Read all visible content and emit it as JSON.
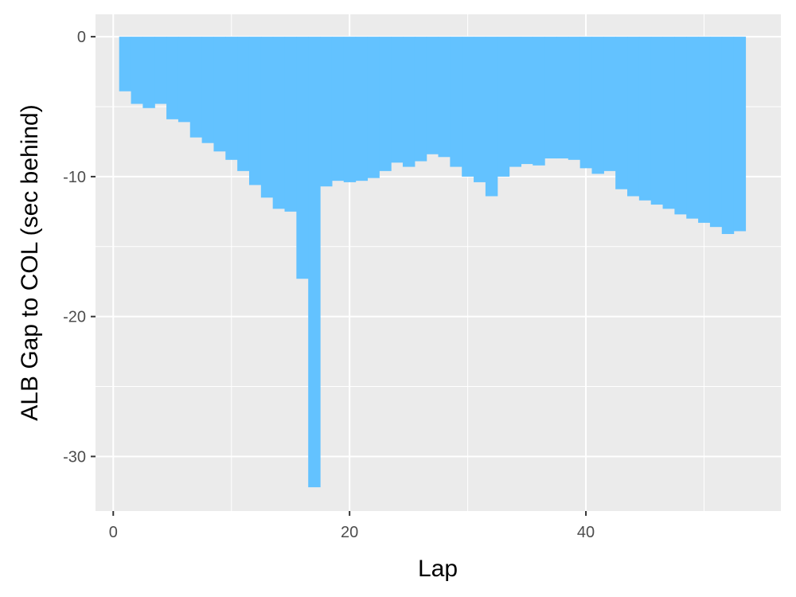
{
  "chart_data": {
    "type": "bar",
    "xlabel": "Lap",
    "ylabel": "ALB Gap to COL (sec behind)",
    "x": [
      1,
      2,
      3,
      4,
      5,
      6,
      7,
      8,
      9,
      10,
      11,
      12,
      13,
      14,
      15,
      16,
      17,
      18,
      19,
      20,
      21,
      22,
      23,
      24,
      25,
      26,
      27,
      28,
      29,
      30,
      31,
      32,
      33,
      34,
      35,
      36,
      37,
      38,
      39,
      40,
      41,
      42,
      43,
      44,
      45,
      46,
      47,
      48,
      49,
      50,
      51,
      52,
      53
    ],
    "values": [
      -3.9,
      -4.8,
      -5.1,
      -4.8,
      -5.9,
      -6.1,
      -7.2,
      -7.6,
      -8.2,
      -8.8,
      -9.6,
      -10.6,
      -11.5,
      -12.3,
      -12.5,
      -17.3,
      -32.2,
      -10.7,
      -10.3,
      -10.4,
      -10.3,
      -10.1,
      -9.6,
      -9.0,
      -9.3,
      -8.9,
      -8.4,
      -8.6,
      -9.3,
      -10.0,
      -10.4,
      -11.4,
      -10.0,
      -9.3,
      -9.1,
      -9.2,
      -8.7,
      -8.7,
      -8.8,
      -9.4,
      -9.8,
      -9.6,
      -10.9,
      -11.4,
      -11.7,
      -12.0,
      -12.3,
      -12.7,
      -13.0,
      -13.3,
      -13.6,
      -14.1,
      -13.9
    ],
    "xlim": [
      -1.5,
      56.5
    ],
    "ylim": [
      -33.9,
      1.6
    ],
    "xticks": [
      0,
      20,
      40
    ],
    "xtick_labels": [
      "0",
      "20",
      "40"
    ],
    "yticks": [
      0,
      -10,
      -20,
      -30
    ],
    "ytick_labels": [
      "0",
      "-10",
      "-20",
      "-30"
    ],
    "grid": true,
    "colors": {
      "bar": "#63c2ff",
      "panel": "#ebebeb",
      "grid": "#ffffff",
      "tick_text": "#4d4d4d"
    }
  }
}
